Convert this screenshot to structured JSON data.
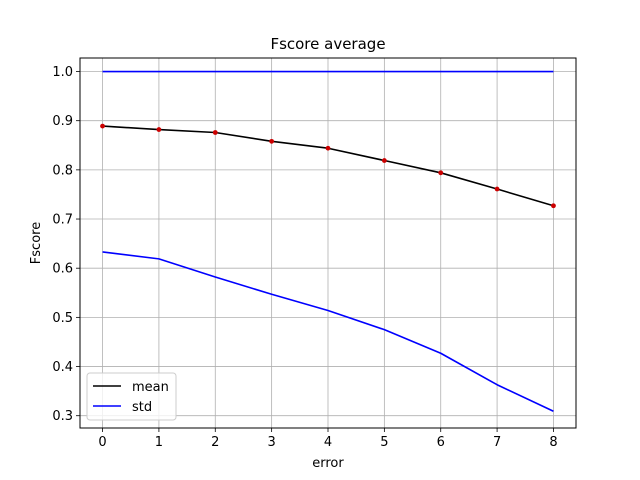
{
  "chart_data": {
    "type": "line",
    "title": "Fscore average",
    "xlabel": "error",
    "ylabel": "Fscore",
    "xlim": [
      -0.4,
      8.4
    ],
    "ylim": [
      0.275,
      1.0275
    ],
    "xticks": [
      0,
      1,
      2,
      3,
      4,
      5,
      6,
      7,
      8
    ],
    "yticks": [
      0.3,
      0.4,
      0.5,
      0.6,
      0.7,
      0.8,
      0.9,
      1.0
    ],
    "ytick_labels": [
      "0.3",
      "0.4",
      "0.5",
      "0.6",
      "0.7",
      "0.8",
      "0.9",
      "1.0"
    ],
    "grid": true,
    "legend_position": "lower-left",
    "x": [
      0,
      1,
      2,
      3,
      4,
      5,
      6,
      7,
      8
    ],
    "series": [
      {
        "name": "mean",
        "color": "#000000",
        "marker_color": "#cc0000",
        "values": [
          0.889,
          0.882,
          0.876,
          0.858,
          0.844,
          0.819,
          0.794,
          0.761,
          0.727
        ]
      },
      {
        "name": "std",
        "color": "#0000ff",
        "values": [
          0.633,
          0.619,
          0.582,
          0.547,
          0.514,
          0.475,
          0.427,
          0.363,
          0.309
        ]
      },
      {
        "name": "",
        "color": "#0000ff",
        "values": [
          1.0,
          1.0,
          1.0,
          1.0,
          1.0,
          1.0,
          1.0,
          1.0,
          1.0
        ]
      }
    ]
  }
}
